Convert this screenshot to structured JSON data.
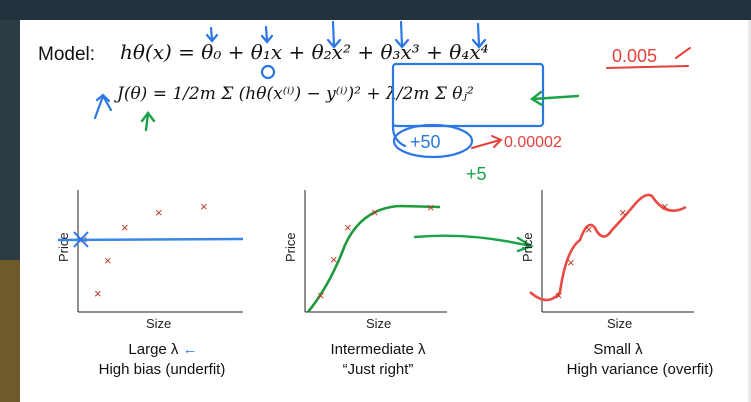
{
  "model": {
    "label": "Model:",
    "hypothesis": "hθ(x) = θ₀ + θ₁x + θ₂x² + θ₃x³ + θ₄x⁴",
    "cost": "J(θ) = 1/2m Σ (hθ(x⁽ⁱ⁾) − y⁽ⁱ⁾)² + λ/2m Σ θⱼ²"
  },
  "annotations": {
    "top_right": "0.005",
    "blue_circle": "+50",
    "red_value": "0.00002",
    "green_plus": "+5"
  },
  "plots": [
    {
      "ylabel": "Price",
      "xlabel": "Size",
      "title": "Large λ",
      "subtitle": "High bias (underfit)"
    },
    {
      "ylabel": "Price",
      "xlabel": "Size",
      "title": "Intermediate λ",
      "subtitle": "“Just right”"
    },
    {
      "ylabel": "Price",
      "xlabel": "Size",
      "title": "Small λ",
      "subtitle": "High variance (overfit)"
    }
  ],
  "colors": {
    "fit_large": "#3a86e8",
    "fit_intermediate": "#1e9a3c",
    "fit_small": "#e8403a",
    "ink_blue": "#2b78e4",
    "ink_green": "#1aa34a",
    "ink_red": "#e8403a"
  }
}
